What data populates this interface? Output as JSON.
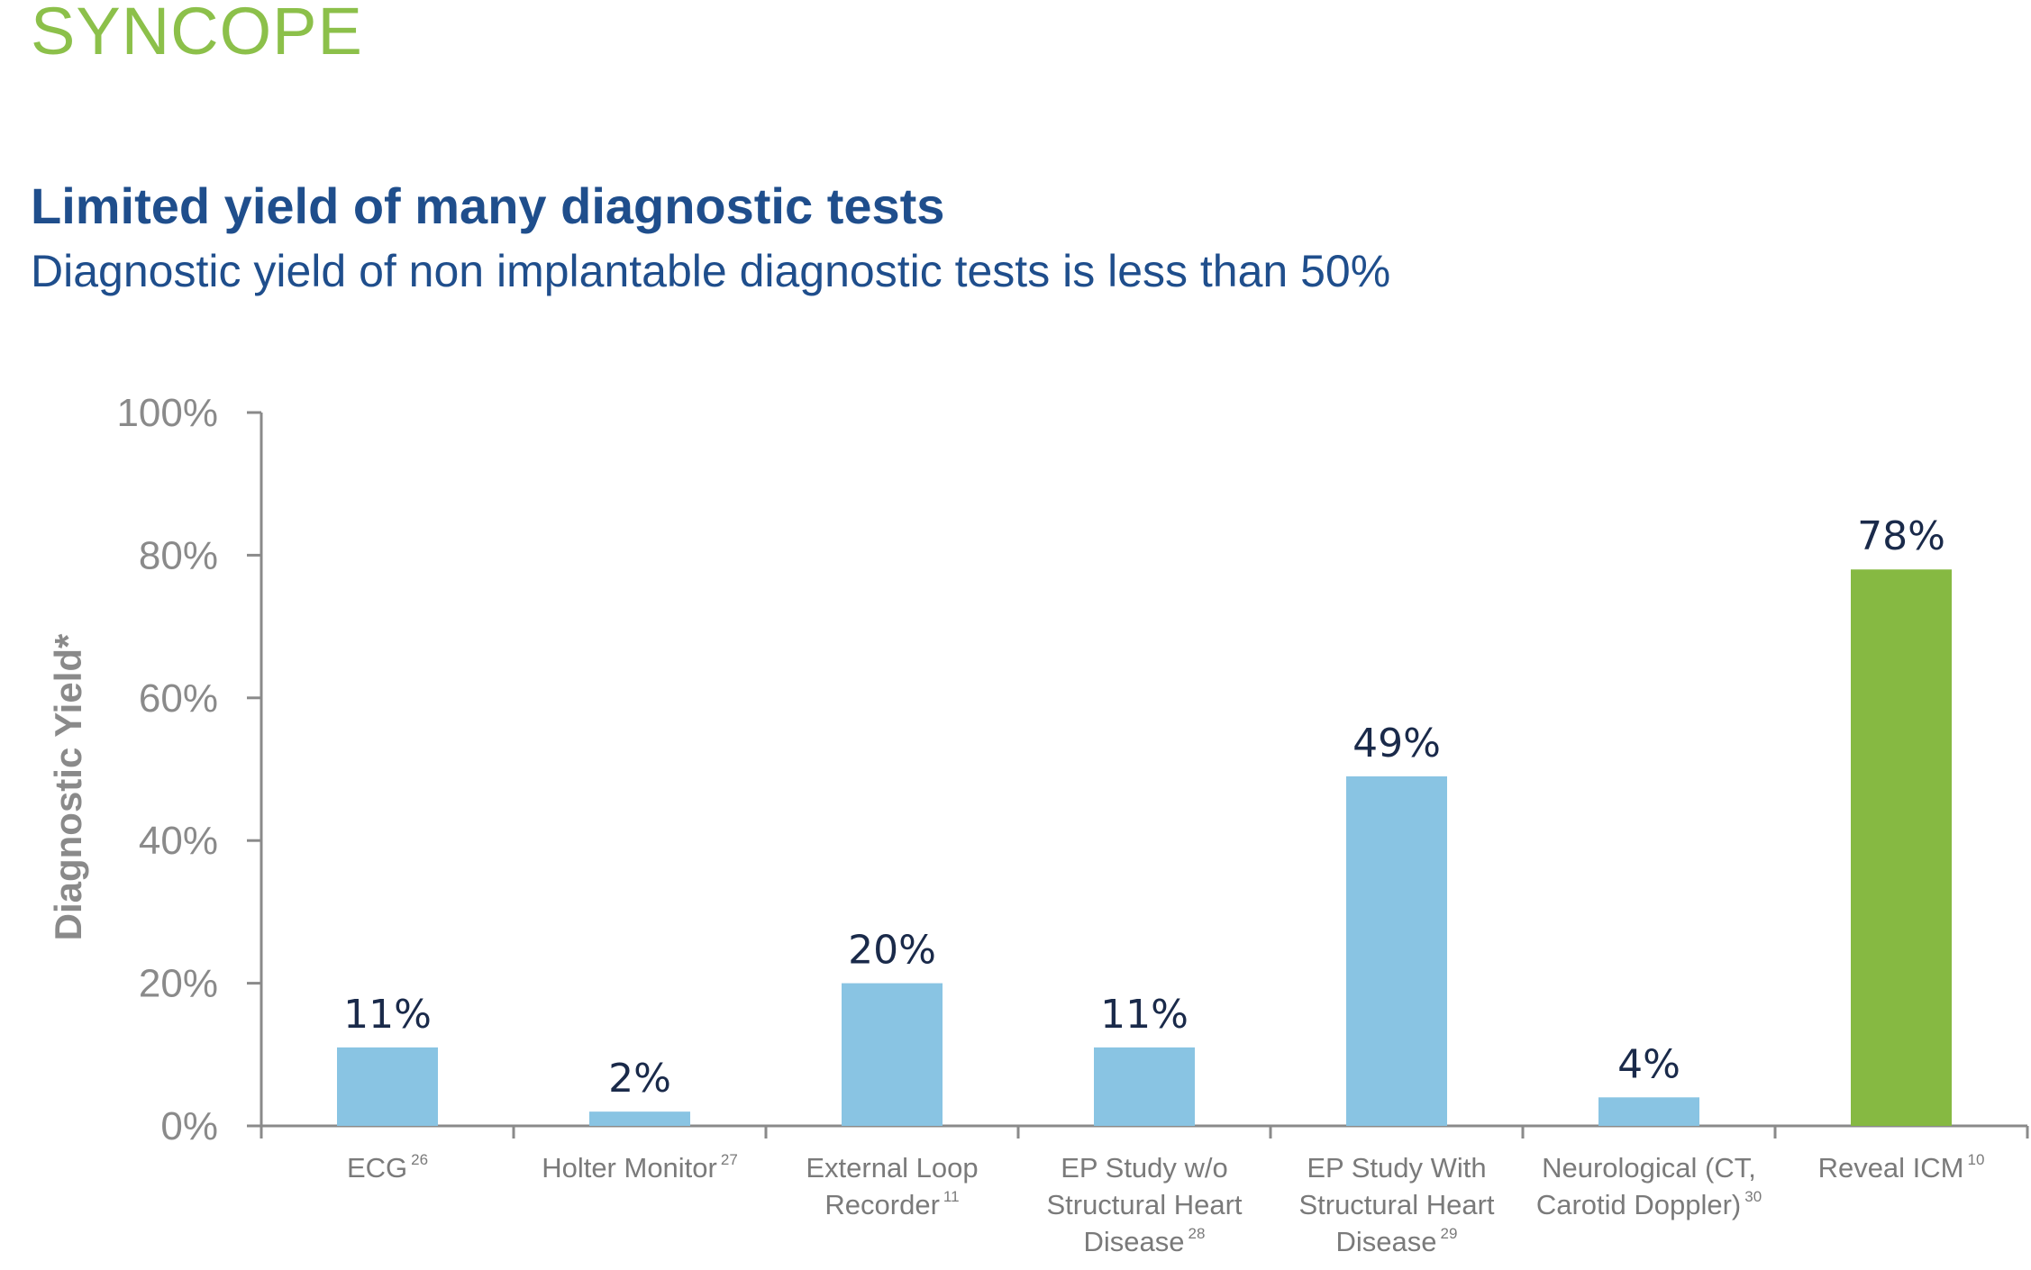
{
  "header": {
    "section_title": "SYNCOPE",
    "headline": "Limited yield of many diagnostic tests",
    "subheadline": "Diagnostic yield of non implantable diagnostic tests is less than 50%"
  },
  "colors": {
    "accent_green": "#8cc04a",
    "title_blue": "#1f4e8c",
    "bar_blue": "#89c4e3",
    "bar_green": "#86b942",
    "axis_gray": "#8a8a8a"
  },
  "chart_data": {
    "type": "bar",
    "title": "",
    "xlabel": "",
    "ylabel": "Diagnostic Yield*",
    "ylim": [
      0,
      100
    ],
    "y_ticks": [
      "0%",
      "20%",
      "40%",
      "60%",
      "80%",
      "100%"
    ],
    "y_tick_values": [
      0,
      20,
      40,
      60,
      80,
      100
    ],
    "categories": [
      {
        "lines": [
          "ECG"
        ],
        "ref": "26",
        "highlight": false
      },
      {
        "lines": [
          "Holter Monitor"
        ],
        "ref": "27",
        "highlight": false
      },
      {
        "lines": [
          "External Loop",
          "Recorder"
        ],
        "ref": "11",
        "highlight": false
      },
      {
        "lines": [
          "EP Study w/o",
          "Structural Heart",
          "Disease"
        ],
        "ref": "28",
        "highlight": false
      },
      {
        "lines": [
          "EP Study With",
          "Structural Heart",
          "Disease"
        ],
        "ref": "29",
        "highlight": false
      },
      {
        "lines": [
          "Neurological (CT,",
          "Carotid Doppler)"
        ],
        "ref": "30",
        "highlight": false
      },
      {
        "lines": [
          "Reveal ICM"
        ],
        "ref": "10",
        "highlight": true
      }
    ],
    "values": [
      11,
      2,
      20,
      11,
      49,
      4,
      78
    ],
    "value_labels": [
      "11%",
      "2%",
      "20%",
      "11%",
      "49%",
      "4%",
      "78%"
    ],
    "unit": "%"
  }
}
